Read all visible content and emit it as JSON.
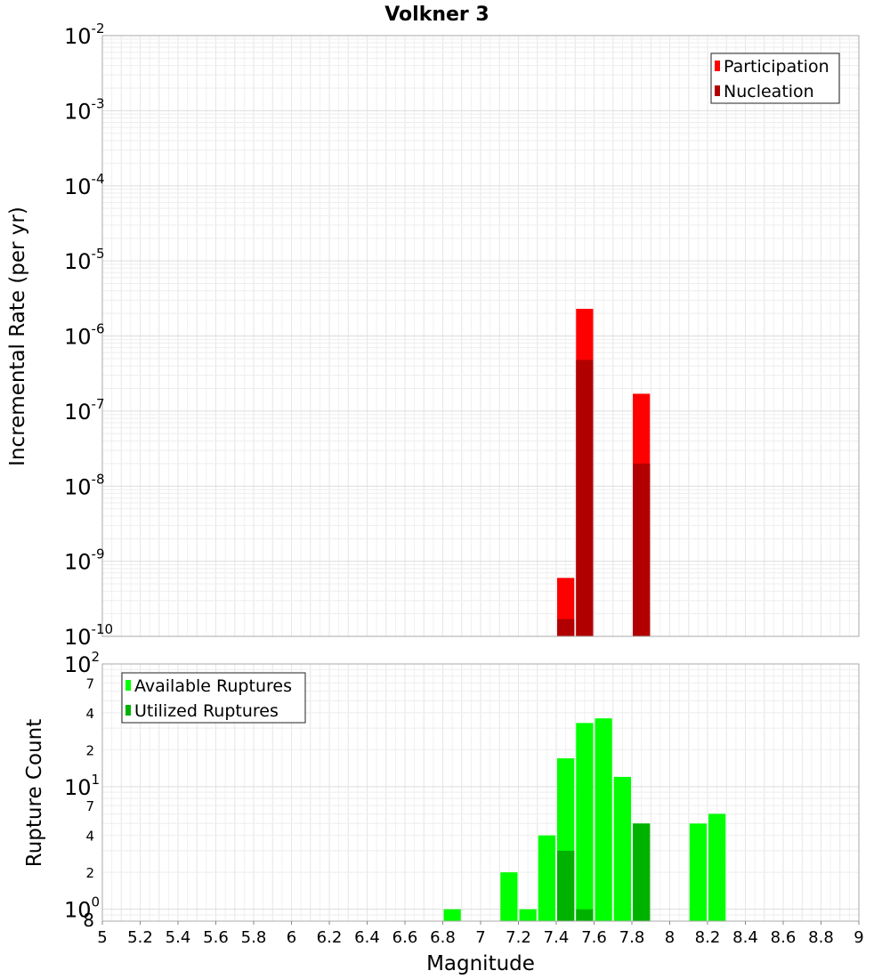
{
  "title": "Volkner 3",
  "x_label": "Magnitude",
  "chart_data": [
    {
      "type": "bar",
      "ylabel": "Incremental Rate (per yr)",
      "yscale": "log",
      "ylim": [
        1e-10,
        0.01
      ],
      "y_tick_exponents": [
        "-2",
        "-3",
        "-4",
        "-5",
        "-6",
        "-7",
        "-8",
        "-9",
        "-10"
      ],
      "xlim": [
        5,
        9
      ],
      "grid": true,
      "legend_position": "top-right",
      "bar_width": 0.1,
      "overlay": true,
      "series": [
        {
          "name": "Participation",
          "color": "#ff0000",
          "x": [
            7.45,
            7.55,
            7.85
          ],
          "values": [
            6e-10,
            2.3e-06,
            1.7e-07
          ]
        },
        {
          "name": "Nucleation",
          "color": "#b20000",
          "x": [
            7.45,
            7.55,
            7.85
          ],
          "values": [
            1.7e-10,
            4.8e-07,
            2e-08
          ]
        }
      ]
    },
    {
      "type": "bar",
      "ylabel": "Rupture Count",
      "yscale": "log",
      "ylim": [
        0.8,
        100
      ],
      "y_major_ticks": [
        {
          "base": "10",
          "exp": "2"
        },
        {
          "base": "10",
          "exp": "1"
        },
        {
          "base": "10",
          "exp": "0"
        }
      ],
      "y_minor_labels": [
        "7",
        "4",
        "2",
        "7",
        "4",
        "2",
        "8"
      ],
      "xlim": [
        5,
        9
      ],
      "grid": true,
      "legend_position": "top-left",
      "bar_width": 0.1,
      "overlay": true,
      "series": [
        {
          "name": "Available Ruptures",
          "color": "#00ff00",
          "x": [
            6.85,
            7.15,
            7.25,
            7.35,
            7.45,
            7.55,
            7.65,
            7.75,
            7.85,
            8.15,
            8.25
          ],
          "values": [
            1,
            2,
            1,
            4,
            17,
            33,
            36,
            12,
            5,
            5,
            6
          ]
        },
        {
          "name": "Utilized Ruptures",
          "color": "#00b200",
          "x": [
            7.45,
            7.55,
            7.85
          ],
          "values": [
            3,
            1,
            5
          ]
        }
      ]
    }
  ],
  "x_ticks": [
    "5",
    "5.2",
    "5.4",
    "5.6",
    "5.8",
    "6",
    "6.2",
    "6.4",
    "6.6",
    "6.8",
    "7",
    "7.2",
    "7.4",
    "7.6",
    "7.8",
    "8",
    "8.2",
    "8.4",
    "8.6",
    "8.8",
    "9"
  ]
}
